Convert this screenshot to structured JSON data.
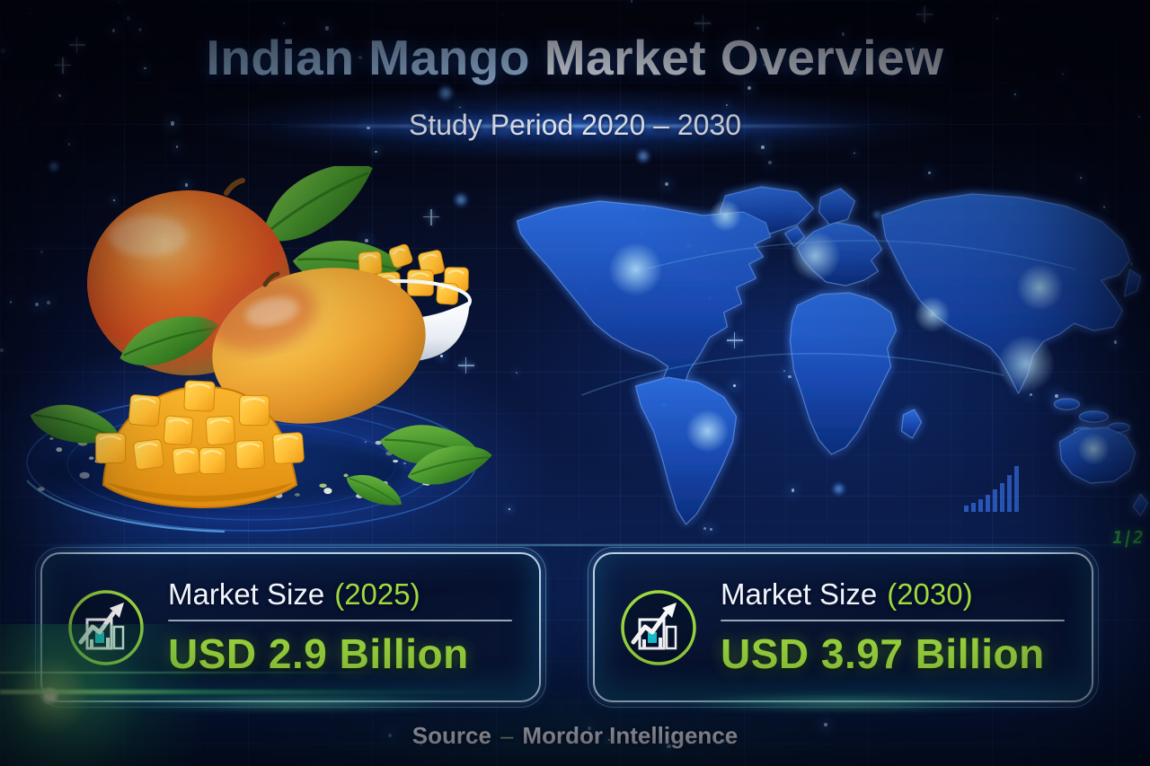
{
  "title": {
    "accent": "Indian Mango",
    "rest": " Market Overview"
  },
  "subtitle": "Study Period 2020 – 2030",
  "cards": [
    {
      "label": "Market Size",
      "year": "(2025)",
      "value": "USD 2.9 Billion"
    },
    {
      "label": "Market Size",
      "year": "(2030)",
      "value": "USD 3.97 Billion"
    }
  ],
  "source": {
    "prefix": "Source",
    "separator": "–",
    "name": "Mordor Intelligence"
  },
  "decor": {
    "matrix_text": "1|2"
  },
  "icons": {
    "card_icon": "growth-chart-icon",
    "map": "world-map-graphic",
    "bars": "rising-bars-icon"
  },
  "chart_data": {
    "type": "table",
    "title": "Indian Mango Market Overview",
    "study_period": "2020 – 2030",
    "categories": [
      "2025",
      "2030"
    ],
    "values": [
      2.9,
      3.97
    ],
    "unit": "USD Billion",
    "source": "Mordor Intelligence"
  },
  "colors": {
    "accent_blue": "#a9cdf1",
    "text_white": "#f2f7ff",
    "lime": "#9fdc3f",
    "card_border": "#d9f0ffd9",
    "divider": "#c7d3df",
    "source_sep": "#9fc3a8",
    "matrix_green": "#37c24e",
    "bar_glyph": "#2d5ec6",
    "map_blue": "#2e6fe0",
    "map_deep": "#0c2f7d"
  }
}
